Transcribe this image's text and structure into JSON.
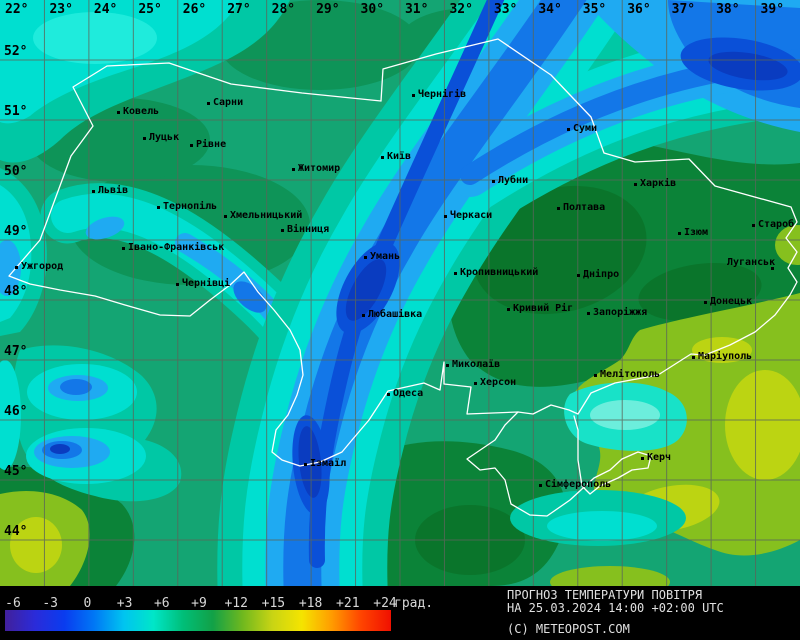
{
  "map": {
    "grid": {
      "lon_labels": [
        "22°",
        "23°",
        "24°",
        "25°",
        "26°",
        "27°",
        "28°",
        "29°",
        "30°",
        "31°",
        "32°",
        "33°",
        "34°",
        "35°",
        "36°",
        "37°",
        "38°",
        "39°"
      ],
      "lat_labels": [
        "52°",
        "51°",
        "50°",
        "49°",
        "48°",
        "47°",
        "46°",
        "45°",
        "44°"
      ],
      "line_color": "#5a665a",
      "border_color": "#ffffff"
    },
    "palette": {
      "green1": "#14A573",
      "green2": "#0E9458",
      "green3": "#0B8338",
      "green4": "#0A752B",
      "teal": "#00C8A5",
      "cyan": "#00DFD0",
      "cyan_bright": "#1FEBDC",
      "aqua": "#18E2C8",
      "aqua_light": "#6CEEDC",
      "lightblue": "#1FAAF2",
      "blue": "#1377E8",
      "deep": "#0A50D8",
      "navy": "#0A3CC0",
      "yellow_green": "#86C01E",
      "yellow": "#BCD412"
    },
    "cities": [
      {
        "name": "Ковель",
        "dot": [
          118,
          112
        ],
        "label": [
          123,
          106
        ]
      },
      {
        "name": "Сарни",
        "dot": [
          208,
          103
        ],
        "label": [
          213,
          97
        ]
      },
      {
        "name": "Луцьк",
        "dot": [
          144,
          138
        ],
        "label": [
          149,
          132
        ]
      },
      {
        "name": "Рівне",
        "dot": [
          191,
          145
        ],
        "label": [
          196,
          139
        ]
      },
      {
        "name": "Житомир",
        "dot": [
          293,
          169
        ],
        "label": [
          298,
          163
        ]
      },
      {
        "name": "Київ",
        "dot": [
          382,
          157
        ],
        "label": [
          387,
          151
        ]
      },
      {
        "name": "Чернігів",
        "dot": [
          413,
          95
        ],
        "label": [
          418,
          89
        ]
      },
      {
        "name": "Суми",
        "dot": [
          568,
          129
        ],
        "label": [
          573,
          123
        ]
      },
      {
        "name": "Львів",
        "dot": [
          93,
          191
        ],
        "label": [
          98,
          185
        ]
      },
      {
        "name": "Тернопіль",
        "dot": [
          158,
          207
        ],
        "label": [
          163,
          201
        ]
      },
      {
        "name": "Хмельницький",
        "dot": [
          225,
          216
        ],
        "label": [
          230,
          210
        ]
      },
      {
        "name": "Вінниця",
        "dot": [
          282,
          230
        ],
        "label": [
          287,
          224
        ]
      },
      {
        "name": "Івано-Франківськ",
        "dot": [
          123,
          248
        ],
        "label": [
          128,
          242
        ]
      },
      {
        "name": "Ужгород",
        "dot": [
          16,
          267
        ],
        "label": [
          21,
          261
        ]
      },
      {
        "name": "Чернівці",
        "dot": [
          177,
          284
        ],
        "label": [
          182,
          278
        ]
      },
      {
        "name": "Умань",
        "dot": [
          365,
          257
        ],
        "label": [
          370,
          251
        ]
      },
      {
        "name": "Любашівка",
        "dot": [
          363,
          315
        ],
        "label": [
          368,
          309
        ]
      },
      {
        "name": "Лубни",
        "dot": [
          493,
          181
        ],
        "label": [
          498,
          175
        ]
      },
      {
        "name": "Харків",
        "dot": [
          635,
          184
        ],
        "label": [
          640,
          178
        ]
      },
      {
        "name": "Полтава",
        "dot": [
          558,
          208
        ],
        "label": [
          563,
          202
        ]
      },
      {
        "name": "Черкаси",
        "dot": [
          445,
          216
        ],
        "label": [
          450,
          210
        ]
      },
      {
        "name": "Кропивницький",
        "dot": [
          455,
          273
        ],
        "label": [
          460,
          267
        ]
      },
      {
        "name": "Дніпро",
        "dot": [
          578,
          275
        ],
        "label": [
          583,
          269
        ]
      },
      {
        "name": "Кривий Ріг",
        "dot": [
          508,
          309
        ],
        "label": [
          513,
          303
        ]
      },
      {
        "name": "Запоріжжя",
        "dot": [
          588,
          313
        ],
        "label": [
          593,
          307
        ]
      },
      {
        "name": "Донецьк",
        "dot": [
          705,
          302
        ],
        "label": [
          710,
          296
        ]
      },
      {
        "name": "Луганськ",
        "dot": [
          772,
          268
        ],
        "label": [
          727,
          257
        ]
      },
      {
        "name": "Староб",
        "dot": [
          753,
          225
        ],
        "label": [
          758,
          219
        ]
      },
      {
        "name": "Ізюм",
        "dot": [
          679,
          233
        ],
        "label": [
          684,
          227
        ]
      },
      {
        "name": "Маріуполь",
        "dot": [
          693,
          357
        ],
        "label": [
          698,
          351
        ]
      },
      {
        "name": "Мелітополь",
        "dot": [
          595,
          375
        ],
        "label": [
          600,
          369
        ]
      },
      {
        "name": "Миколаїв",
        "dot": [
          447,
          365
        ],
        "label": [
          452,
          359
        ]
      },
      {
        "name": "Херсон",
        "dot": [
          475,
          383
        ],
        "label": [
          480,
          377
        ]
      },
      {
        "name": "Одеса",
        "dot": [
          388,
          394
        ],
        "label": [
          393,
          388
        ]
      },
      {
        "name": "Ізмаїл",
        "dot": [
          305,
          464
        ],
        "label": [
          310,
          458
        ]
      },
      {
        "name": "Сімферополь",
        "dot": [
          540,
          485
        ],
        "label": [
          545,
          479
        ]
      },
      {
        "name": "Керч",
        "dot": [
          642,
          458
        ],
        "label": [
          647,
          452
        ]
      }
    ]
  },
  "legend": {
    "ticks": [
      "-6",
      "-3",
      "0",
      "+3",
      "+6",
      "+9",
      "+12",
      "+15",
      "+18",
      "+21",
      "+24"
    ],
    "unit": "град.",
    "gradient": [
      "#41209B",
      "#2B2BD9",
      "#0A3CEF",
      "#0077F5",
      "#00C4F0",
      "#00E6C8",
      "#00BE78",
      "#12A147",
      "#6FB81E",
      "#C8D414",
      "#F5E400",
      "#FF9C00",
      "#FF4400",
      "#F01000"
    ]
  },
  "title": {
    "line1": "ПРОГНОЗ ТЕМПЕРАТУРИ ПОВІТРЯ",
    "line2": "НА 25.03.2024 14:00 +02:00 UTC",
    "copyright": "(C) METEOPOST.COM"
  }
}
